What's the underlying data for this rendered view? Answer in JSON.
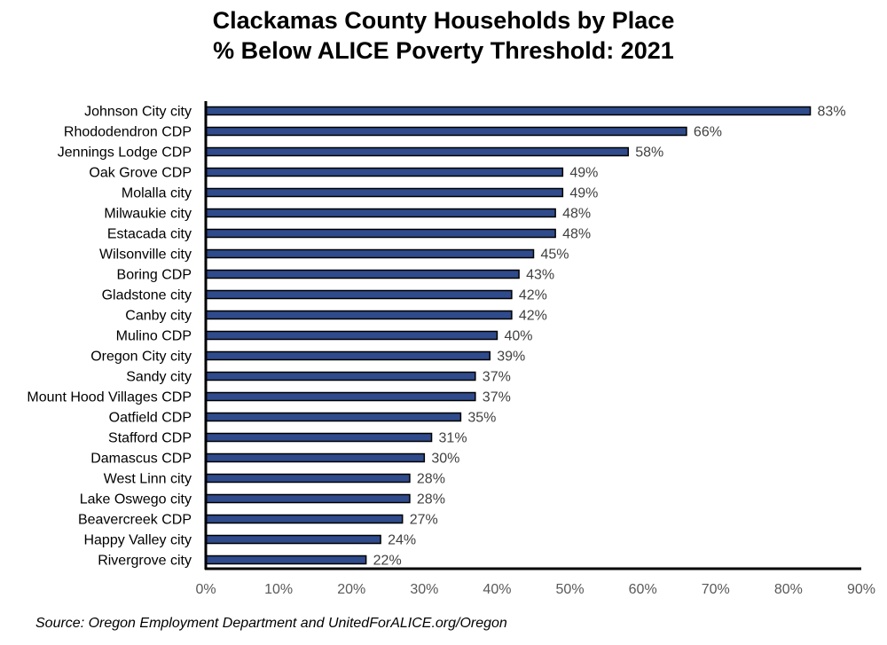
{
  "chart_data": {
    "type": "bar",
    "orientation": "horizontal",
    "title": "Clackamas County Households by Place",
    "subtitle": "% Below ALICE Poverty Threshold: 2021",
    "categories": [
      "Johnson City city",
      "Rhododendron CDP",
      "Jennings Lodge CDP",
      "Oak Grove CDP",
      "Molalla city",
      "Milwaukie city",
      "Estacada city",
      "Wilsonville city",
      "Boring CDP",
      "Gladstone city",
      "Canby city",
      "Mulino CDP",
      "Oregon City city",
      "Sandy city",
      "Mount Hood Villages CDP",
      "Oatfield CDP",
      "Stafford CDP",
      "Damascus CDP",
      "West Linn city",
      "Lake Oswego city",
      "Beavercreek CDP",
      "Happy Valley city",
      "Rivergrove city"
    ],
    "values": [
      83,
      66,
      58,
      49,
      49,
      48,
      48,
      45,
      43,
      42,
      42,
      40,
      39,
      37,
      37,
      35,
      31,
      30,
      28,
      28,
      27,
      24,
      22
    ],
    "value_labels": [
      "83%",
      "66%",
      "58%",
      "49%",
      "49%",
      "48%",
      "48%",
      "45%",
      "43%",
      "42%",
      "42%",
      "40%",
      "39%",
      "37%",
      "37%",
      "35%",
      "31%",
      "30%",
      "28%",
      "28%",
      "27%",
      "24%",
      "22%"
    ],
    "xlim": [
      0,
      90
    ],
    "x_ticks": [
      "0%",
      "10%",
      "20%",
      "30%",
      "40%",
      "50%",
      "60%",
      "70%",
      "80%",
      "90%"
    ],
    "xlabel": "",
    "ylabel": "",
    "grid": false,
    "bar_color": "#2f4b8c",
    "bar_edge_color": "#000000"
  },
  "source": "Source: Oregon Employment Department and UnitedForALICE.org/Oregon"
}
